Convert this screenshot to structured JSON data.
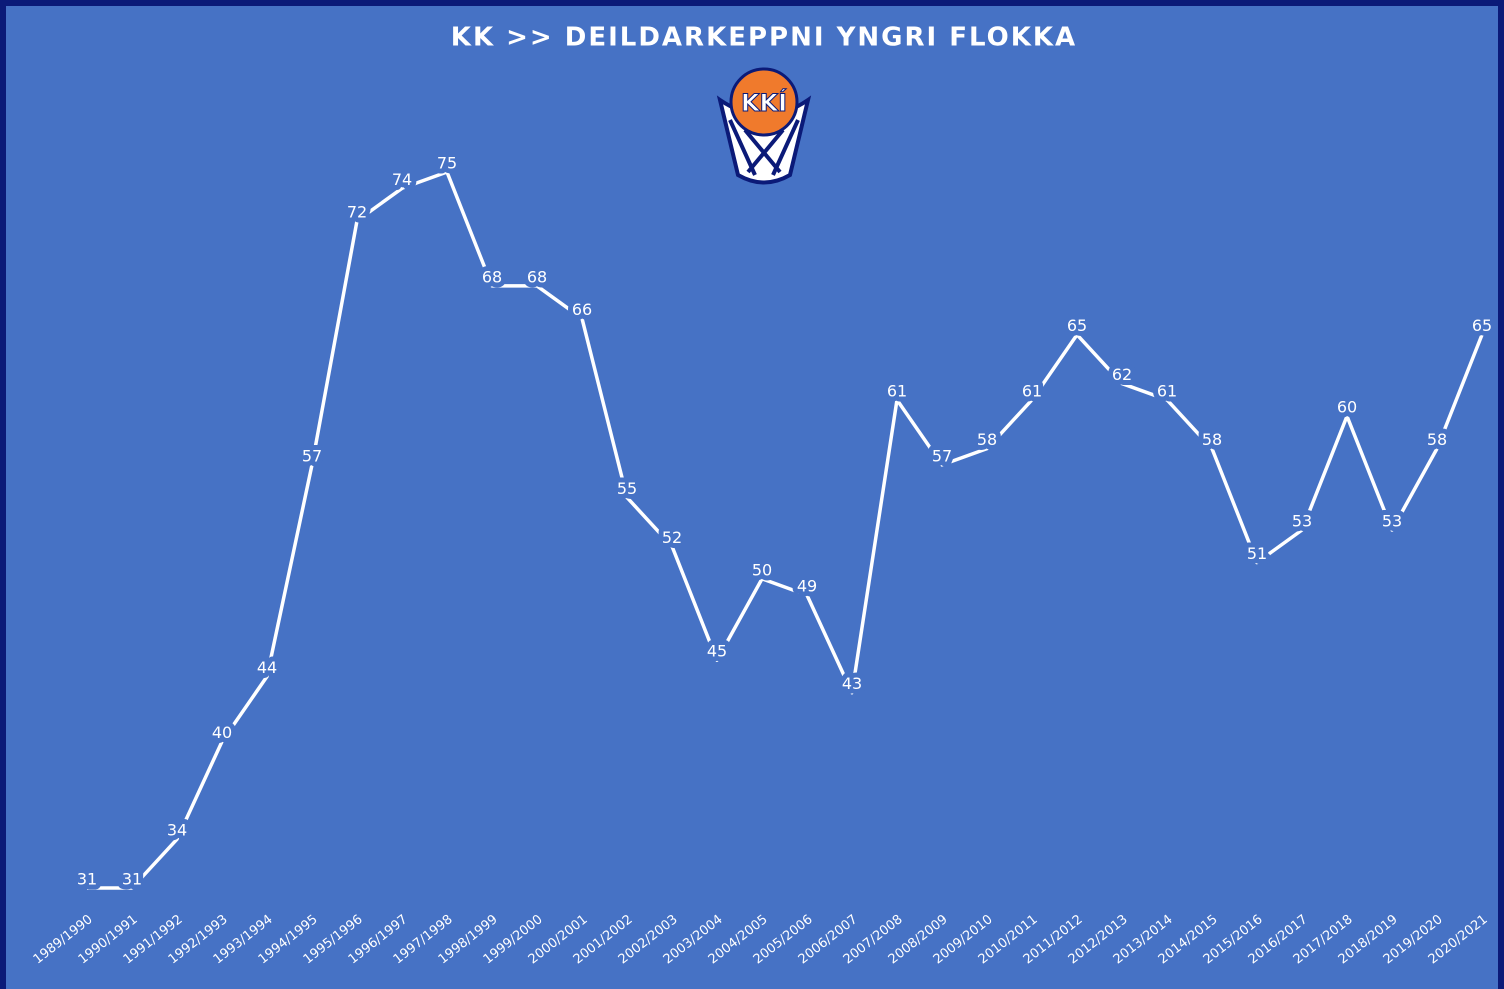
{
  "chart_data": {
    "type": "line",
    "title": "KK >> DEILDARKEPPNI YNGRI FLOKKA",
    "logo_text": "KKÍ",
    "categories": [
      "1989/1990",
      "1990/1991",
      "1991/1992",
      "1992/1993",
      "1993/1994",
      "1994/1995",
      "1995/1996",
      "1996/1997",
      "1997/1998",
      "1998/1999",
      "1999/2000",
      "2000/2001",
      "2001/2002",
      "2002/2003",
      "2003/2004",
      "2004/2005",
      "2005/2006",
      "2006/2007",
      "2007/2008",
      "2008/2009",
      "2009/2010",
      "2010/2011",
      "2011/2012",
      "2012/2013",
      "2013/2014",
      "2014/2015",
      "2015/2016",
      "2016/2017",
      "2017/2018",
      "2018/2019",
      "2019/2020",
      "2020/2021"
    ],
    "values": [
      31,
      31,
      34,
      40,
      44,
      57,
      72,
      74,
      75,
      68,
      68,
      66,
      55,
      52,
      45,
      50,
      49,
      43,
      61,
      57,
      58,
      61,
      65,
      62,
      61,
      58,
      51,
      53,
      60,
      53,
      58,
      65
    ],
    "color": "#ffffff"
  }
}
